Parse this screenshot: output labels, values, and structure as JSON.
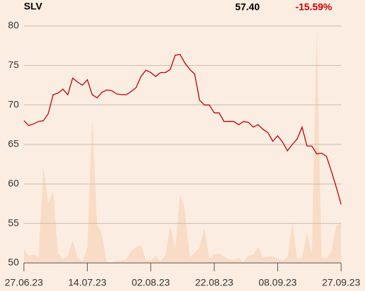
{
  "chart_data": {
    "type": "line",
    "title": "SLV",
    "price": "57.40",
    "change": "-15.59%",
    "categories": [
      "27.06.23",
      null,
      null,
      null,
      null,
      null,
      null,
      null,
      null,
      null,
      null,
      null,
      null,
      "14.07.23",
      null,
      null,
      null,
      null,
      null,
      null,
      null,
      null,
      null,
      null,
      null,
      null,
      "02.08.23",
      null,
      null,
      null,
      null,
      null,
      null,
      null,
      null,
      null,
      null,
      null,
      null,
      "22.08.23",
      null,
      null,
      null,
      null,
      null,
      null,
      null,
      null,
      null,
      null,
      null,
      null,
      "08.09.23",
      null,
      null,
      null,
      null,
      null,
      null,
      null,
      null,
      null,
      null,
      null,
      null,
      "27.09.23"
    ],
    "series": [
      {
        "color": "#c00000",
        "values": [
          68.0,
          67.4,
          67.6,
          67.9,
          68.0,
          68.9,
          71.3,
          71.5,
          72.0,
          71.3,
          73.4,
          72.9,
          72.5,
          73.2,
          71.3,
          70.9,
          71.6,
          71.9,
          71.8,
          71.4,
          71.3,
          71.3,
          71.7,
          72.2,
          73.6,
          74.4,
          74.1,
          73.6,
          74.1,
          74.1,
          74.5,
          76.3,
          76.4,
          75.3,
          74.5,
          73.9,
          70.6,
          70.0,
          70.0,
          69.0,
          69.0,
          67.9,
          67.9,
          67.9,
          67.5,
          67.9,
          67.8,
          67.2,
          67.5,
          66.9,
          66.5,
          65.4,
          66.1,
          65.3,
          64.2,
          65.0,
          65.7,
          67.2,
          64.8,
          64.8,
          63.8,
          63.9,
          63.5,
          61.6,
          59.6,
          57.4
        ]
      },
      {
        "type": "area",
        "color": "#f9dcc6",
        "values": [
          51.8,
          50.9,
          51.1,
          50.7,
          62.2,
          57.6,
          59.1,
          51.2,
          50.5,
          50.9,
          52.9,
          50.7,
          50.2,
          52.0,
          68.6,
          54.9,
          53.7,
          50.1,
          50.1,
          50.3,
          50.3,
          50.5,
          51.5,
          52.0,
          52.3,
          50.4,
          50.3,
          50.9,
          50.2,
          51.0,
          54.7,
          51.8,
          58.7,
          56.7,
          50.7,
          51.3,
          52.0,
          54.4,
          50.5,
          51.1,
          51.2,
          50.8,
          50.5,
          50.4,
          50.6,
          50.1,
          50.9,
          51.1,
          52.0,
          50.7,
          50.8,
          50.8,
          50.5,
          50.3,
          50.7,
          55.2,
          50.5,
          50.7,
          53.8,
          51.2,
          79.7,
          50.7,
          50.5,
          51.5,
          54.7,
          55.1
        ]
      }
    ],
    "change_color": "#cc0000",
    "ylim": [
      50,
      80
    ],
    "yticks": [
      50,
      55,
      60,
      65,
      70,
      75,
      80
    ],
    "grid": true
  }
}
